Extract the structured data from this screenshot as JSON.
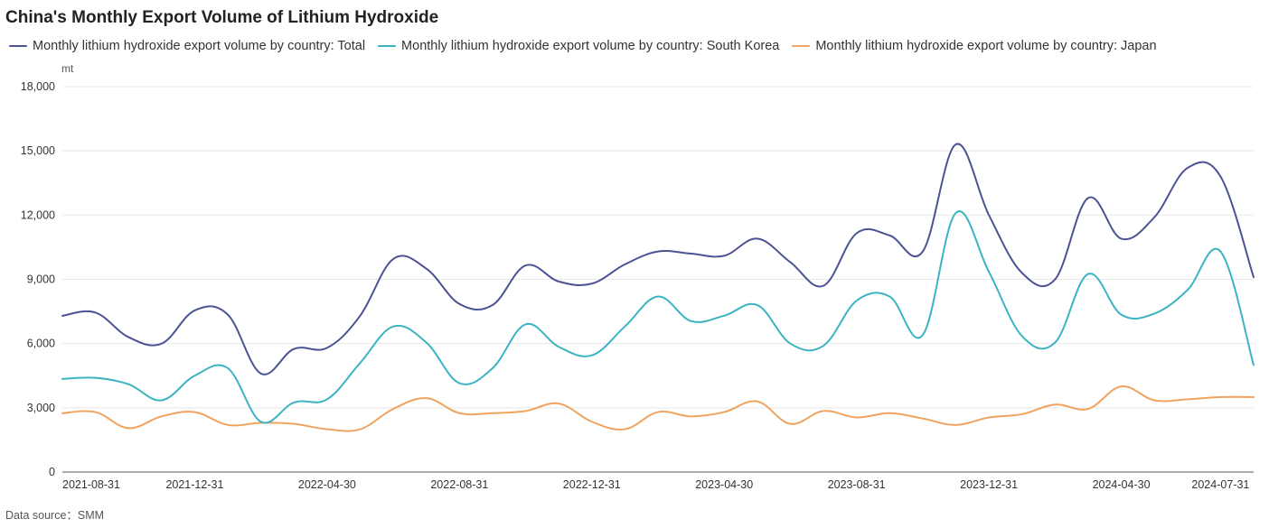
{
  "title": "China's Monthly Export Volume of Lithium Hydroxide",
  "unit": "mt",
  "source": "Data source：SMM",
  "colors": {
    "total": "#4b5394",
    "south_korea": "#3cb3c3",
    "japan": "#f0a35f",
    "grid": "#e8e8e8",
    "axis": "#555555"
  },
  "chart_data": {
    "type": "line",
    "title": "China's Monthly Export Volume of Lithium Hydroxide",
    "ylabel": "mt",
    "xlabel": "",
    "ylim": [
      0,
      18000
    ],
    "yticks": [
      "0",
      "3,000",
      "6,000",
      "9,000",
      "12,000",
      "15,000",
      "18,000"
    ],
    "ytick_values": [
      0,
      3000,
      6000,
      9000,
      12000,
      15000,
      18000
    ],
    "xtick_labels": [
      "2021-08-31",
      "2021-12-31",
      "2022-04-30",
      "2022-08-31",
      "2022-12-31",
      "2023-04-30",
      "2023-08-31",
      "2023-12-31",
      "2024-04-30",
      "2024-07-31"
    ],
    "xtick_indices": [
      0,
      4,
      8,
      12,
      16,
      20,
      24,
      28,
      32,
      35
    ],
    "grid": true,
    "legend_position": "top-left",
    "x": [
      "2021-08-31",
      "2021-09-30",
      "2021-10-31",
      "2021-11-30",
      "2021-12-31",
      "2022-01-31",
      "2022-02-28",
      "2022-03-31",
      "2022-04-30",
      "2022-05-31",
      "2022-06-30",
      "2022-07-31",
      "2022-08-31",
      "2022-09-30",
      "2022-10-31",
      "2022-11-30",
      "2022-12-31",
      "2023-01-31",
      "2023-02-28",
      "2023-03-31",
      "2023-04-30",
      "2023-05-31",
      "2023-06-30",
      "2023-07-31",
      "2023-08-31",
      "2023-09-30",
      "2023-10-31",
      "2023-11-30",
      "2023-12-31",
      "2024-01-31",
      "2024-02-29",
      "2024-03-31",
      "2024-04-30",
      "2024-05-31",
      "2024-06-30",
      "2024-07-31",
      "2024-08-31"
    ],
    "series": [
      {
        "name": "Monthly lithium hydroxide export volume by country: Total",
        "key": "total",
        "values": [
          7300,
          7450,
          6300,
          6000,
          7550,
          7350,
          4600,
          5750,
          5800,
          7300,
          9950,
          9500,
          7850,
          7800,
          9650,
          8900,
          8800,
          9700,
          10300,
          10200,
          10100,
          10900,
          9800,
          8700,
          11150,
          11050,
          10300,
          15300,
          12000,
          9300,
          9000,
          12800,
          10900,
          11900,
          14200,
          13800,
          9100
        ]
      },
      {
        "name": "Monthly lithium hydroxide export volume by country: South Korea",
        "key": "south_korea",
        "values": [
          4350,
          4400,
          4100,
          3350,
          4500,
          4850,
          2350,
          3250,
          3400,
          5100,
          6800,
          6050,
          4150,
          4850,
          6900,
          5850,
          5450,
          6800,
          8200,
          7050,
          7300,
          7800,
          6000,
          5900,
          8000,
          8200,
          6400,
          12100,
          9350,
          6350,
          6050,
          9250,
          7350,
          7400,
          8500,
          10300,
          5000
        ]
      },
      {
        "name": "Monthly lithium hydroxide export volume by country: Japan",
        "key": "japan",
        "values": [
          2750,
          2800,
          2050,
          2600,
          2800,
          2200,
          2300,
          2250,
          2000,
          2000,
          2950,
          3450,
          2750,
          2750,
          2850,
          3200,
          2350,
          2000,
          2800,
          2600,
          2800,
          3300,
          2250,
          2850,
          2550,
          2750,
          2500,
          2200,
          2550,
          2700,
          3150,
          2950,
          4000,
          3350,
          3400,
          3500,
          3500
        ]
      }
    ]
  }
}
